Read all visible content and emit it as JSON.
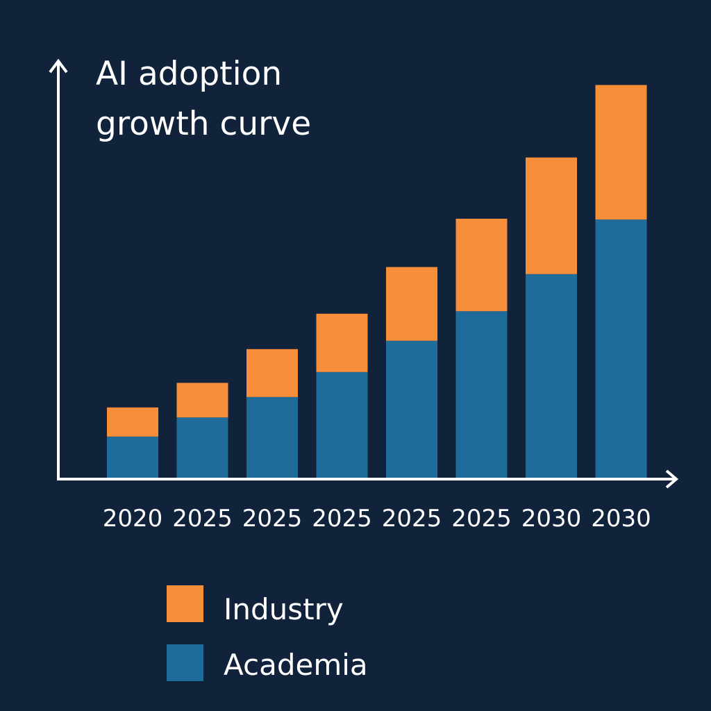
{
  "chart_data": {
    "type": "bar",
    "stacked": true,
    "title_lines": [
      "AI adoption",
      "growth curve"
    ],
    "categories": [
      "2020",
      "2025",
      "2025",
      "2025",
      "2025",
      "2025",
      "2030",
      "2030"
    ],
    "series": [
      {
        "name": "Academia",
        "color": "#1f6b99",
        "values": [
          10.2,
          14.8,
          19.7,
          25.7,
          33.2,
          40.3,
          49.2,
          62.3
        ]
      },
      {
        "name": "Industry",
        "color": "#f78f3a",
        "values": [
          7.0,
          8.3,
          11.5,
          14.0,
          17.7,
          22.2,
          28.0,
          32.3
        ]
      }
    ],
    "legend_order": [
      "Industry",
      "Academia"
    ],
    "xlabel": "",
    "ylabel": "",
    "ylim": [
      0,
      100
    ],
    "y_ticks_shown": false,
    "grid": false,
    "legend_position": "bottom-left",
    "background_color": "#10233a",
    "axis_color": "#ffffff"
  }
}
